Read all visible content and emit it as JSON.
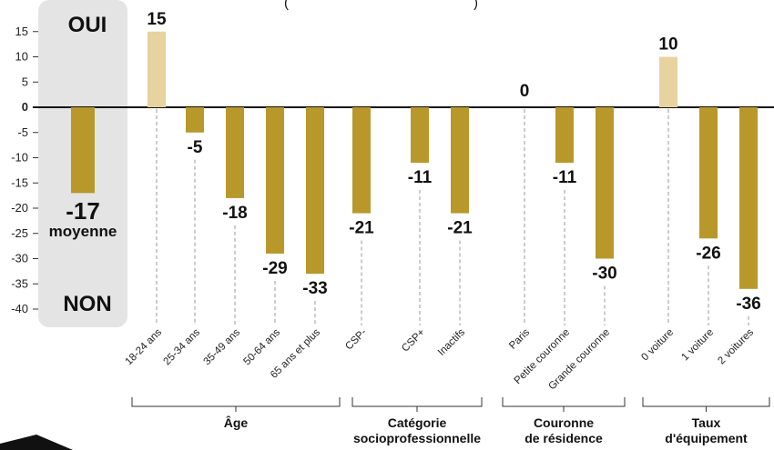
{
  "chart_data": {
    "type": "bar",
    "title": "(",
    "title_tail": ")",
    "yticks": [
      15,
      10,
      5,
      0,
      -5,
      -10,
      -15,
      -20,
      -25,
      -30,
      -35,
      -40
    ],
    "ylim": [
      -40,
      15
    ],
    "oui_label": "OUI",
    "non_label": "NON",
    "average": {
      "value": -17,
      "label": "moyenne"
    },
    "groups": [
      {
        "label": [
          "Âge"
        ],
        "categories": [
          "18-24 ans",
          "25-34 ans",
          "35-49 ans",
          "50-64 ans",
          "65 ans et plus"
        ],
        "values": [
          15,
          -5,
          -18,
          -29,
          -33
        ]
      },
      {
        "label": [
          "Catégorie",
          "socioprofessionnelle"
        ],
        "categories": [
          "CSP-",
          "CSP+",
          "Inactifs"
        ],
        "values": [
          -21,
          -11,
          -21
        ]
      },
      {
        "label": [
          "Couronne",
          "de résidence"
        ],
        "categories": [
          "Paris",
          "Petite couronne",
          "Grande couronne"
        ],
        "values": [
          0,
          -11,
          -30
        ]
      },
      {
        "label": [
          "Taux",
          "d'équipement"
        ],
        "categories": [
          "0 voiture",
          "1 voiture",
          "2 voitures"
        ],
        "values": [
          10,
          -26,
          -36
        ]
      }
    ],
    "colors": {
      "negative": "#b8982a",
      "positive": "#e6d3a0",
      "panel": "#e4e4e4"
    }
  }
}
